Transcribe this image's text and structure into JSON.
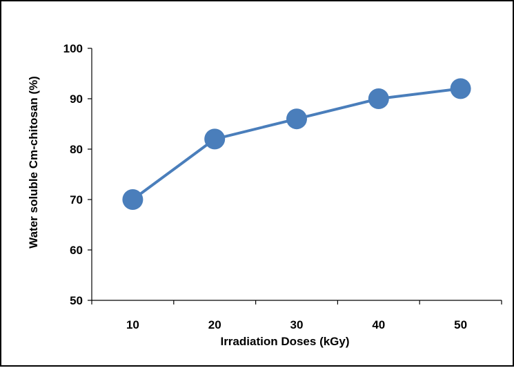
{
  "chart_data": {
    "type": "line",
    "title": "",
    "xlabel": "Irradiation Doses  (kGy)",
    "ylabel": "Water soluble Cm-chitosan  (%)",
    "x": [
      10,
      20,
      30,
      40,
      50
    ],
    "x_tick_labels": [
      "10",
      "20",
      "30",
      "40",
      "50"
    ],
    "series": [
      {
        "values": [
          70,
          82,
          86,
          90,
          92
        ]
      }
    ],
    "ylim": [
      50,
      100
    ],
    "y_ticks": [
      50,
      60,
      70,
      80,
      90,
      100
    ],
    "grid": false,
    "legend": "none",
    "colors": {
      "line": "#4a7ebb",
      "marker": "#4a7ebb",
      "axis": "#000000"
    }
  }
}
